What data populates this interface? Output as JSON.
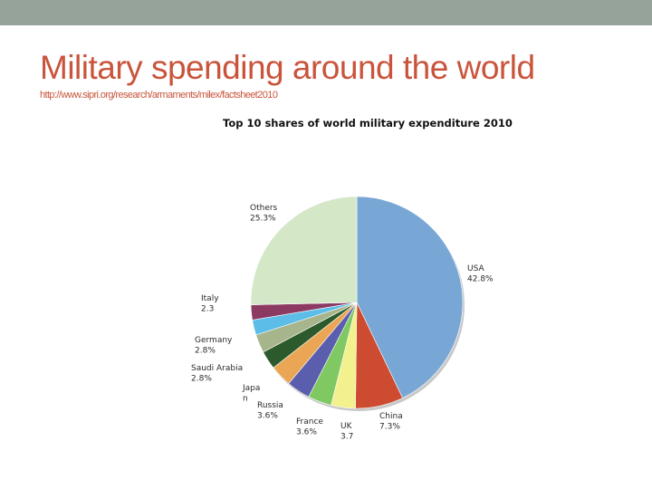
{
  "slide": {
    "title": "Military spending around the world",
    "subtitle": "http://www.sipri.org/research/armaments/milex/factsheet2010"
  },
  "colors": {
    "title": "#c9543b",
    "top_band": "#95a39a"
  },
  "chart_data": {
    "type": "pie",
    "title": "Top 10 shares of world military expenditure 2010",
    "slices": [
      {
        "name": "USA",
        "value": 42.8,
        "label_name": "USA",
        "label_value": "42.8%",
        "color": "#78a7d6",
        "labeled": true
      },
      {
        "name": "China",
        "value": 7.3,
        "label_name": "China",
        "label_value": "7.3%",
        "color": "#cc4b31",
        "labeled": true
      },
      {
        "name": "UK",
        "value": 3.7,
        "label_name": "UK",
        "label_value": "3.7",
        "color": "#f3f08e",
        "labeled": true
      },
      {
        "name": "France",
        "value": 3.6,
        "label_name": "France",
        "label_value": "3.6%",
        "color": "#7fc862",
        "labeled": true
      },
      {
        "name": "Russia",
        "value": 3.6,
        "label_name": "Russia",
        "label_value": "3.6%",
        "color": "#5a5eac",
        "labeled": true
      },
      {
        "name": "Japan",
        "value": 3.3,
        "label_name": "Japa\nn",
        "label_value": "",
        "color": "#eaa654",
        "labeled": true
      },
      {
        "name": "Saudi Arabia",
        "value": 2.8,
        "label_name": "Saudi Arabia",
        "label_value": "2.8%",
        "color": "#2d5a2d",
        "labeled": true
      },
      {
        "name": "Germany",
        "value": 2.8,
        "label_name": "Germany",
        "label_value": "2.8%",
        "color": "#a7b58c",
        "labeled": true
      },
      {
        "name": "Unlabeled",
        "value": 2.3,
        "label_name": "",
        "label_value": "",
        "color": "#5cbde9",
        "labeled": false
      },
      {
        "name": "Italy",
        "value": 2.3,
        "label_name": "Italy",
        "label_value": "2.3",
        "color": "#8c3a62",
        "labeled": true
      },
      {
        "name": "Others",
        "value": 25.3,
        "label_name": "Others",
        "label_value": "25.3%",
        "color": "#d4e8c8",
        "labeled": true
      }
    ],
    "start_angle": "12 o'clock",
    "direction": "clockwise",
    "legend": "none"
  }
}
